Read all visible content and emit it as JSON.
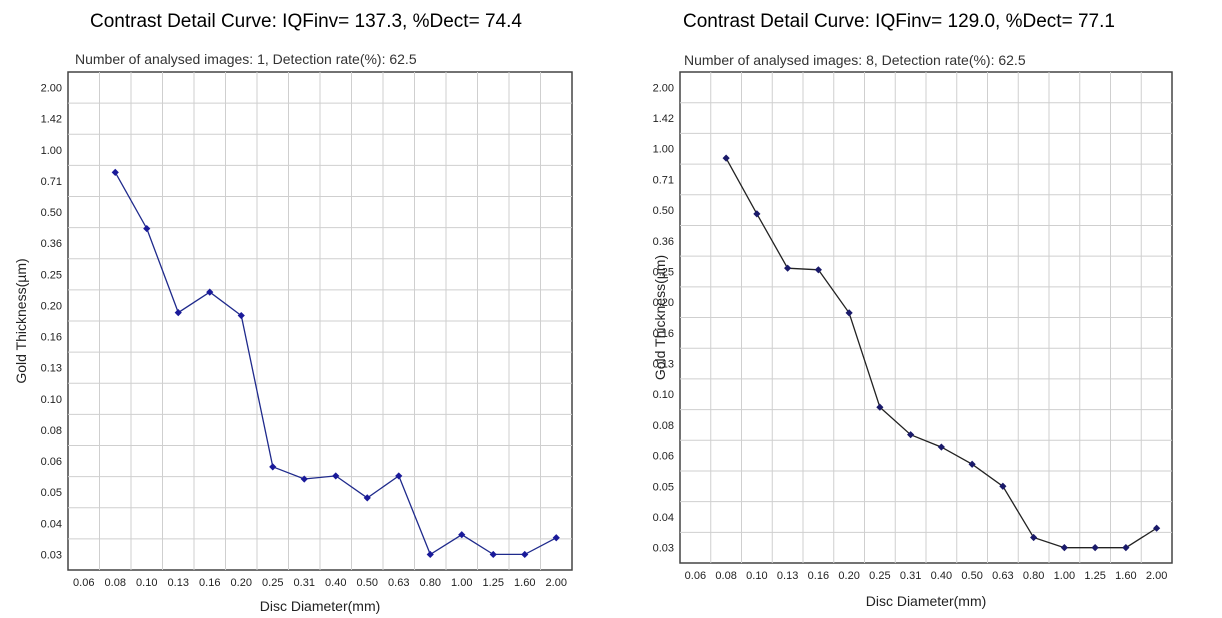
{
  "chart_data": [
    {
      "type": "line",
      "title": "Contrast Detail Curve: IQFinv= 137.3, %Dect= 74.4",
      "subtitle": "Number of analysed images: 1, Detection rate(%): 62.5",
      "xlabel": "Disc Diameter(mm)",
      "ylabel": "Gold Thickness(µm)",
      "x_ticks": [
        "0.06",
        "0.08",
        "0.10",
        "0.13",
        "0.16",
        "0.20",
        "0.25",
        "0.31",
        "0.40",
        "0.50",
        "0.63",
        "0.80",
        "1.00",
        "1.25",
        "1.60",
        "2.00"
      ],
      "y_ticks": [
        "2.00",
        "1.42",
        "1.00",
        "0.71",
        "0.50",
        "0.36",
        "0.25",
        "0.20",
        "0.16",
        "0.13",
        "0.10",
        "0.08",
        "0.06",
        "0.05",
        "0.04",
        "0.03"
      ],
      "grid": true,
      "line_color": "#1f2a8c",
      "marker_color": "#1a1a9a",
      "series": [
        {
          "x": [
            "0.08",
            "0.10",
            "0.13",
            "0.16",
            "0.20",
            "0.25",
            "0.31",
            "0.40",
            "0.50",
            "0.63",
            "0.80",
            "1.00",
            "1.25",
            "1.60",
            "2.00"
          ],
          "y": [
            0.78,
            0.42,
            0.19,
            0.22,
            0.186,
            0.058,
            0.054,
            0.055,
            0.048,
            0.055,
            0.027,
            0.036,
            0.027,
            0.027,
            0.035
          ]
        }
      ]
    },
    {
      "type": "line",
      "title": "Contrast Detail Curve: IQFinv= 129.0, %Dect= 77.1",
      "subtitle": "Number of analysed images: 8, Detection rate(%): 62.5",
      "xlabel": "Disc Diameter(mm)",
      "ylabel": "Gold Thickness(µm)",
      "x_ticks": [
        "0.06",
        "0.08",
        "0.10",
        "0.13",
        "0.16",
        "0.20",
        "0.25",
        "0.31",
        "0.40",
        "0.50",
        "0.63",
        "0.80",
        "1.00",
        "1.25",
        "1.60",
        "2.00"
      ],
      "y_ticks": [
        "2.00",
        "1.42",
        "1.00",
        "0.71",
        "0.50",
        "0.36",
        "0.25",
        "0.20",
        "0.16",
        "0.13",
        "0.10",
        "0.08",
        "0.06",
        "0.05",
        "0.04",
        "0.03"
      ],
      "grid": true,
      "line_color": "#222222",
      "marker_color": "#1a1a6a",
      "series": [
        {
          "x": [
            "0.08",
            "0.10",
            "0.13",
            "0.16",
            "0.20",
            "0.25",
            "0.31",
            "0.40",
            "0.50",
            "0.63",
            "0.80",
            "1.00",
            "1.25",
            "1.60",
            "2.00"
          ],
          "y": [
            0.9,
            0.48,
            0.26,
            0.255,
            0.185,
            0.091,
            0.073,
            0.065,
            0.057,
            0.05,
            0.033,
            0.027,
            0.027,
            0.027,
            0.036
          ]
        }
      ]
    }
  ]
}
